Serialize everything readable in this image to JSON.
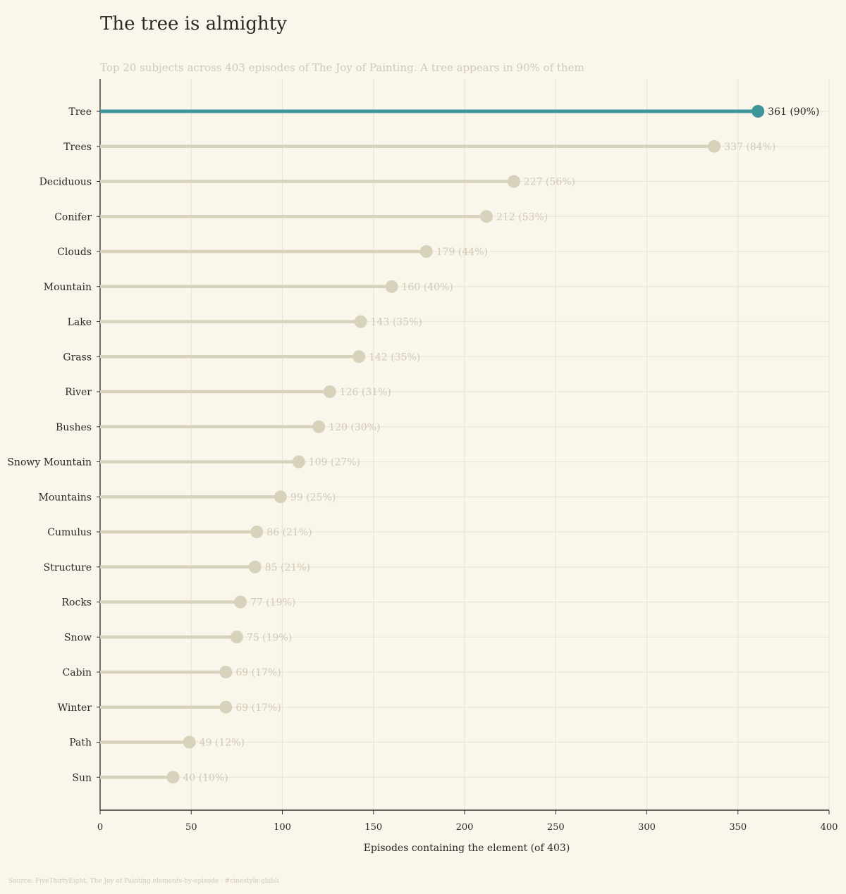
{
  "colors": {
    "background": "#faf6ec",
    "highlight": "#3d969a",
    "muted": "#d7d2bb",
    "muted_text": "#d0cab2",
    "dark_text": "#2a2a22",
    "grid": "#ebe6d6",
    "axis": "#333333"
  },
  "chart_data": {
    "type": "lollipop",
    "title": "The tree is almighty",
    "subtitle": "Top 20 subjects across 403 episodes of The Joy of Painting. A tree appears in 90% of them",
    "xlabel": "Episodes containing the element (of 403)",
    "ylabel": "",
    "xlim": [
      0,
      400
    ],
    "xticks": [
      0,
      50,
      100,
      150,
      200,
      250,
      300,
      350,
      400
    ],
    "grid": true,
    "highlight_category": "Tree",
    "categories": [
      "Tree",
      "Trees",
      "Deciduous",
      "Conifer",
      "Clouds",
      "Mountain",
      "Lake",
      "Grass",
      "River",
      "Bushes",
      "Snowy Mountain",
      "Mountains",
      "Cumulus",
      "Structure",
      "Rocks",
      "Snow",
      "Cabin",
      "Winter",
      "Path",
      "Sun"
    ],
    "values": [
      361,
      337,
      227,
      212,
      179,
      160,
      143,
      142,
      126,
      120,
      109,
      99,
      86,
      85,
      77,
      75,
      69,
      69,
      49,
      40
    ],
    "data_labels": [
      "361 (90%)",
      "337 (84%)",
      "227 (56%)",
      "212 (53%)",
      "179 (44%)",
      "160 (40%)",
      "143 (35%)",
      "142 (35%)",
      "126 (31%)",
      "120 (30%)",
      "109 (27%)",
      "99 (25%)",
      "86 (21%)",
      "85 (21%)",
      "77 (19%)",
      "75 (19%)",
      "69 (17%)",
      "69 (17%)",
      "49 (12%)",
      "40 (10%)"
    ]
  },
  "caption": "Source: FiveThirtyEight, The Joy of Painting elements-by-episode · #cinestyle:ghibli"
}
